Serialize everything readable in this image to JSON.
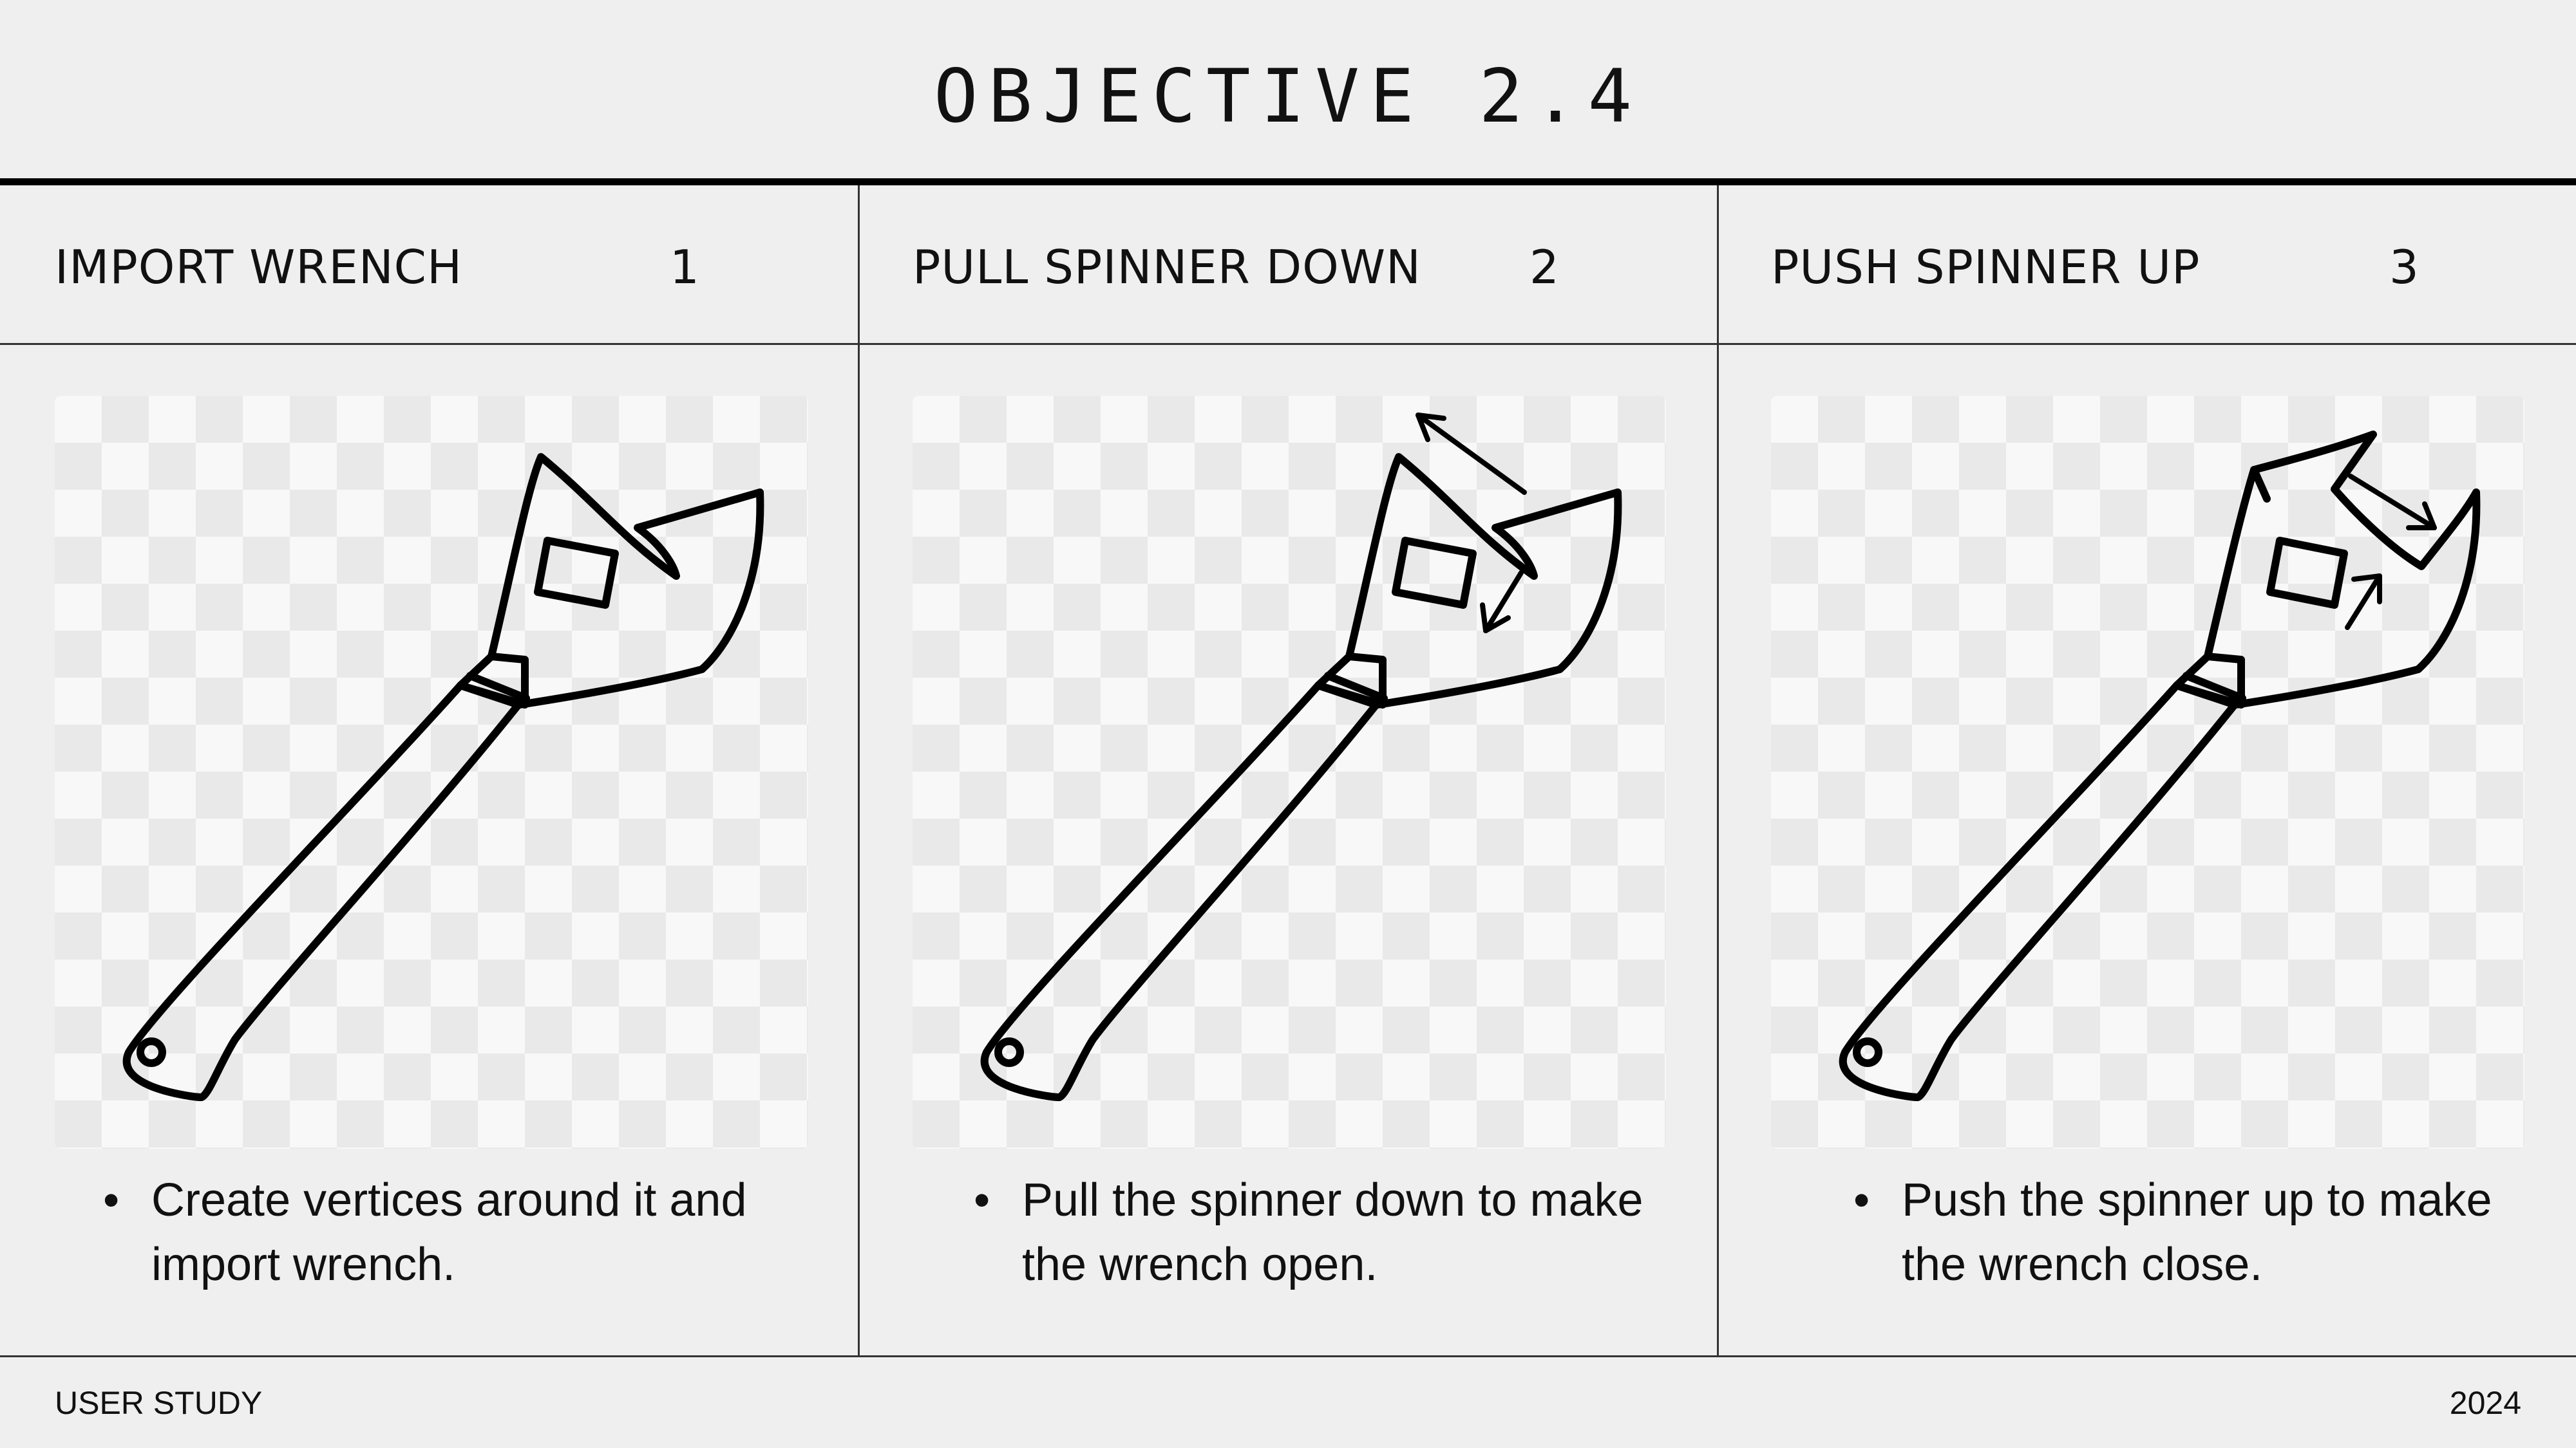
{
  "header": {
    "title": "OBJECTIVE 2.4"
  },
  "steps": [
    {
      "label": "IMPORT WRENCH",
      "number": "1",
      "bullet": "Create vertices around it and import wrench.",
      "arrows": "none"
    },
    {
      "label": "PULL SPINNER DOWN",
      "number": "2",
      "bullet": "Pull the spinner down to make the wrench open.",
      "arrows": "open"
    },
    {
      "label": "PUSH SPINNER UP",
      "number": "3",
      "bullet": "Push the spinner up to make the wrench close.",
      "arrows": "close"
    }
  ],
  "bullet_glyph": "•",
  "footer": {
    "left": "USER STUDY",
    "right": "2024"
  },
  "colors": {
    "background": "#efefef",
    "ink": "#111111",
    "checker_light": "#f8f8f8",
    "checker_dark": "#e9e9e9"
  },
  "icons": [
    "wrench-icon",
    "arrow-icon"
  ]
}
